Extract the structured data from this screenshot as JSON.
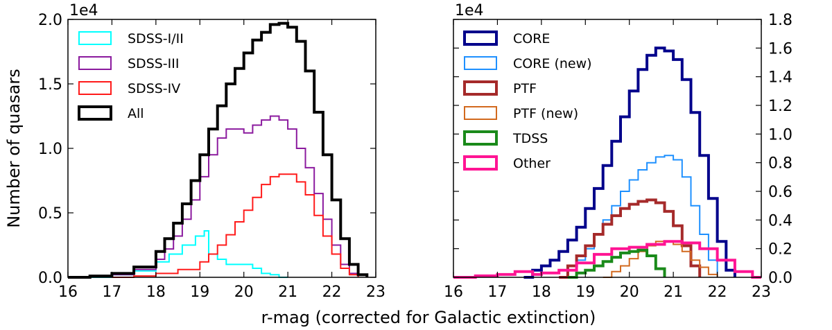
{
  "figure": {
    "shared_xlabel": "r-mag (corrected for Galactic extinction)"
  },
  "chart_data": [
    {
      "type": "step",
      "ylabel": "Number of quasars",
      "xlabel": "",
      "scale_label": "1e4",
      "xlim": [
        16,
        23
      ],
      "ylim": [
        0,
        2.0
      ],
      "xticks": [
        "16",
        "17",
        "18",
        "19",
        "20",
        "21",
        "22",
        "23"
      ],
      "yticks": [
        "0.0",
        "0.5",
        "1.0",
        "1.5",
        "2.0"
      ],
      "legend_position": "upper-left",
      "series": [
        {
          "name": "SDSS-I/II",
          "color": "#00ffff",
          "width": 2,
          "x": [
            16.0,
            16.5,
            17.0,
            17.5,
            18.0,
            18.3,
            18.6,
            18.9,
            19.1,
            19.2,
            19.4,
            19.6,
            19.8,
            20.0,
            20.2,
            20.4,
            20.6,
            20.8,
            21.0
          ],
          "y": [
            0.0,
            0.0,
            0.02,
            0.05,
            0.12,
            0.18,
            0.25,
            0.32,
            0.36,
            0.18,
            0.14,
            0.1,
            0.1,
            0.1,
            0.07,
            0.03,
            0.02,
            0.0,
            0.0
          ]
        },
        {
          "name": "SDSS-III",
          "color": "#8b1a9e",
          "width": 2,
          "x": [
            16.0,
            16.5,
            17.0,
            17.5,
            18.0,
            18.2,
            18.4,
            18.6,
            18.8,
            19.0,
            19.2,
            19.4,
            19.6,
            19.8,
            20.0,
            20.2,
            20.4,
            20.6,
            20.8,
            21.0,
            21.2,
            21.4,
            21.6,
            21.8,
            22.0,
            22.2,
            22.4,
            22.6
          ],
          "y": [
            0.0,
            0.01,
            0.02,
            0.06,
            0.14,
            0.22,
            0.32,
            0.45,
            0.6,
            0.78,
            0.95,
            1.08,
            1.15,
            1.15,
            1.12,
            1.18,
            1.22,
            1.25,
            1.22,
            1.15,
            1.0,
            0.85,
            0.65,
            0.45,
            0.25,
            0.1,
            0.03,
            0.0
          ]
        },
        {
          "name": "SDSS-IV",
          "color": "#ff1a1a",
          "width": 2,
          "x": [
            17.0,
            17.5,
            18.0,
            18.5,
            19.0,
            19.2,
            19.4,
            19.6,
            19.8,
            20.0,
            20.2,
            20.4,
            20.6,
            20.8,
            21.0,
            21.2,
            21.4,
            21.6,
            21.8,
            22.0,
            22.2,
            22.4,
            22.6
          ],
          "y": [
            0.0,
            0.01,
            0.03,
            0.06,
            0.12,
            0.18,
            0.25,
            0.33,
            0.43,
            0.52,
            0.62,
            0.72,
            0.78,
            0.8,
            0.8,
            0.74,
            0.64,
            0.48,
            0.32,
            0.18,
            0.07,
            0.02,
            0.0
          ]
        },
        {
          "name": "All",
          "color": "#000000",
          "width": 4,
          "x": [
            16.0,
            16.5,
            17.0,
            17.5,
            18.0,
            18.2,
            18.4,
            18.6,
            18.8,
            19.0,
            19.2,
            19.4,
            19.6,
            19.8,
            20.0,
            20.2,
            20.4,
            20.6,
            20.8,
            21.0,
            21.2,
            21.4,
            21.6,
            21.8,
            22.0,
            22.2,
            22.4,
            22.6,
            22.8
          ],
          "y": [
            0.0,
            0.01,
            0.03,
            0.08,
            0.2,
            0.3,
            0.42,
            0.57,
            0.75,
            0.95,
            1.15,
            1.33,
            1.5,
            1.62,
            1.74,
            1.84,
            1.9,
            1.96,
            1.97,
            1.94,
            1.83,
            1.6,
            1.28,
            0.95,
            0.6,
            0.3,
            0.1,
            0.02,
            0.0
          ]
        }
      ]
    },
    {
      "type": "step",
      "ylabel": "",
      "xlabel": "",
      "scale_label": "1e4",
      "xlim": [
        16,
        23
      ],
      "ylim": [
        0,
        1.8
      ],
      "y_axis_side": "right",
      "xticks": [
        "16",
        "17",
        "18",
        "19",
        "20",
        "21",
        "22",
        "23"
      ],
      "yticks": [
        "0.0",
        "0.2",
        "0.4",
        "0.6",
        "0.8",
        "1.0",
        "1.2",
        "1.4",
        "1.6",
        "1.8"
      ],
      "legend_position": "upper-left",
      "series": [
        {
          "name": "CORE",
          "color": "#00008b",
          "width": 4,
          "x": [
            17.6,
            17.8,
            18.0,
            18.2,
            18.4,
            18.6,
            18.8,
            19.0,
            19.2,
            19.4,
            19.6,
            19.8,
            20.0,
            20.2,
            20.4,
            20.6,
            20.8,
            21.0,
            21.2,
            21.4,
            21.6,
            21.8,
            22.0,
            22.2,
            22.4
          ],
          "y": [
            0.0,
            0.05,
            0.08,
            0.12,
            0.18,
            0.26,
            0.35,
            0.48,
            0.62,
            0.78,
            0.95,
            1.12,
            1.3,
            1.45,
            1.55,
            1.6,
            1.58,
            1.52,
            1.38,
            1.15,
            0.85,
            0.55,
            0.25,
            0.05,
            0.0
          ]
        },
        {
          "name": "CORE (new)",
          "color": "#1e90ff",
          "width": 2,
          "x": [
            18.4,
            18.6,
            18.8,
            19.0,
            19.2,
            19.4,
            19.6,
            19.8,
            20.0,
            20.2,
            20.4,
            20.6,
            20.8,
            21.0,
            21.2,
            21.4,
            21.6,
            21.8,
            22.0
          ],
          "y": [
            0.0,
            0.05,
            0.12,
            0.2,
            0.3,
            0.4,
            0.5,
            0.6,
            0.68,
            0.75,
            0.8,
            0.84,
            0.85,
            0.82,
            0.7,
            0.5,
            0.3,
            0.12,
            0.0
          ]
        },
        {
          "name": "PTF",
          "color": "#a52a2a",
          "width": 4,
          "x": [
            18.4,
            18.6,
            18.8,
            19.0,
            19.2,
            19.4,
            19.6,
            19.8,
            20.0,
            20.2,
            20.4,
            20.6,
            20.8,
            21.0,
            21.2,
            21.4,
            21.6
          ],
          "y": [
            0.0,
            0.08,
            0.15,
            0.22,
            0.3,
            0.37,
            0.43,
            0.48,
            0.51,
            0.53,
            0.54,
            0.52,
            0.46,
            0.36,
            0.22,
            0.08,
            0.0
          ]
        },
        {
          "name": "PTF (new)",
          "color": "#d2691e",
          "width": 2,
          "x": [
            19.4,
            19.6,
            19.8,
            20.0,
            20.2,
            20.4,
            20.6,
            20.8,
            21.0,
            21.2,
            21.4,
            21.6,
            21.8,
            22.0
          ],
          "y": [
            0.0,
            0.04,
            0.08,
            0.13,
            0.18,
            0.22,
            0.25,
            0.25,
            0.23,
            0.18,
            0.12,
            0.07,
            0.02,
            0.0
          ]
        },
        {
          "name": "TDSS",
          "color": "#1a8a1a",
          "width": 4,
          "x": [
            18.6,
            18.8,
            19.0,
            19.2,
            19.4,
            19.6,
            19.8,
            20.0,
            20.2,
            20.4,
            20.6,
            20.8
          ],
          "y": [
            0.0,
            0.03,
            0.05,
            0.08,
            0.11,
            0.14,
            0.17,
            0.18,
            0.19,
            0.15,
            0.06,
            0.0
          ]
        },
        {
          "name": "Other",
          "color": "#ff1493",
          "width": 4,
          "x": [
            16.0,
            16.5,
            17.0,
            17.4,
            17.8,
            18.0,
            18.4,
            18.8,
            19.2,
            19.6,
            20.0,
            20.4,
            20.8,
            21.2,
            21.6,
            22.0,
            22.4,
            22.8,
            23.0
          ],
          "y": [
            0.0,
            0.01,
            0.02,
            0.04,
            0.02,
            0.03,
            0.05,
            0.1,
            0.16,
            0.2,
            0.21,
            0.23,
            0.25,
            0.24,
            0.2,
            0.12,
            0.04,
            0.0,
            0.0
          ]
        }
      ]
    }
  ]
}
